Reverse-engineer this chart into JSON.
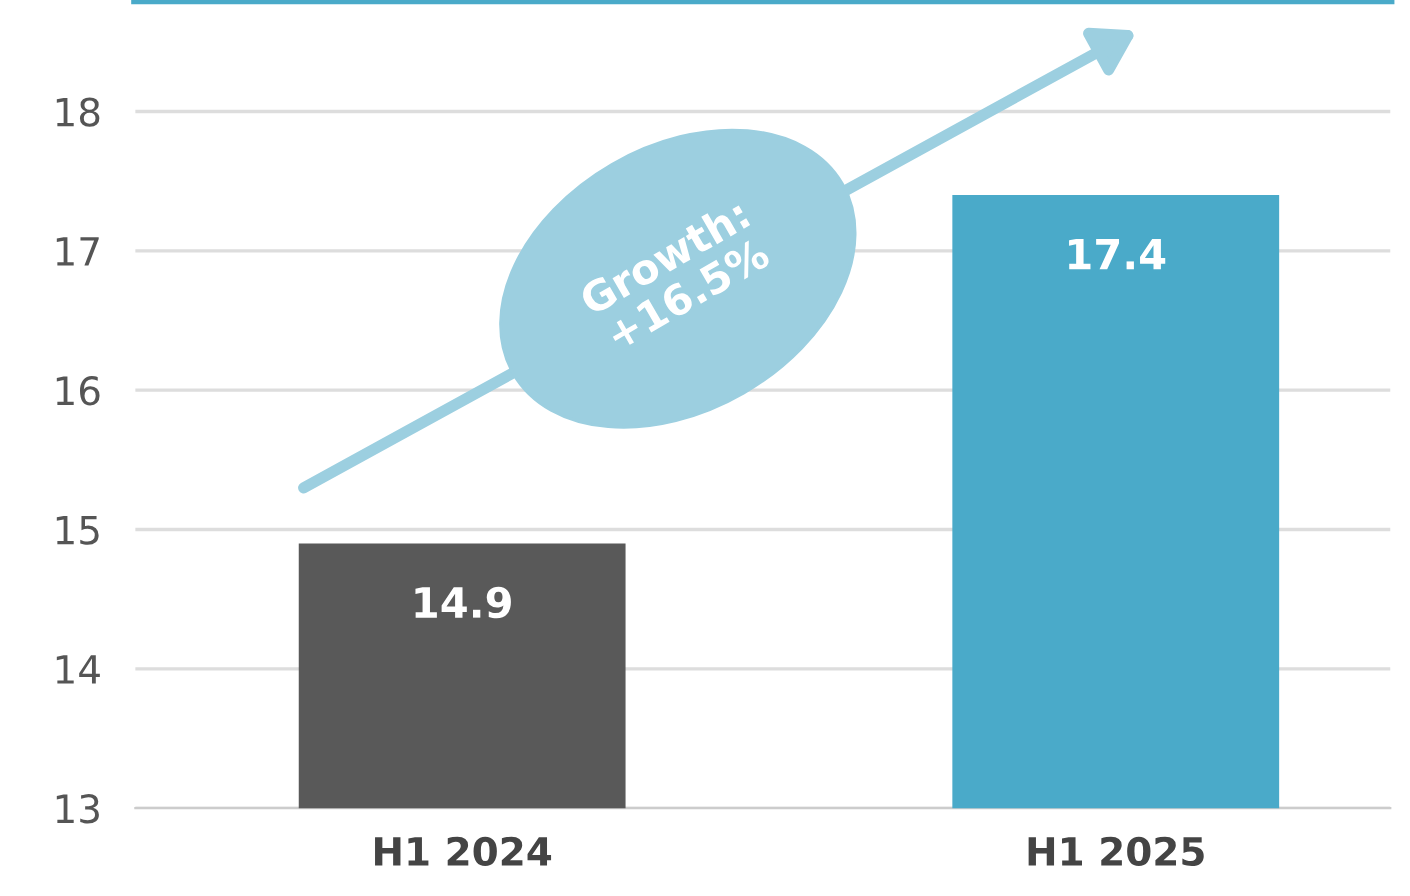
{
  "chart_data": {
    "type": "bar",
    "categories": [
      "H1 2024",
      "H1 2025"
    ],
    "values": [
      14.9,
      17.4
    ],
    "colors": [
      "#595959",
      "#4aaac9"
    ],
    "ylim": [
      13,
      18.8
    ],
    "yticks": [
      13,
      14,
      15,
      16,
      17,
      18
    ],
    "grid": "y",
    "data_labels": true,
    "annotations": [
      "Growth:\n+16.5%"
    ]
  }
}
